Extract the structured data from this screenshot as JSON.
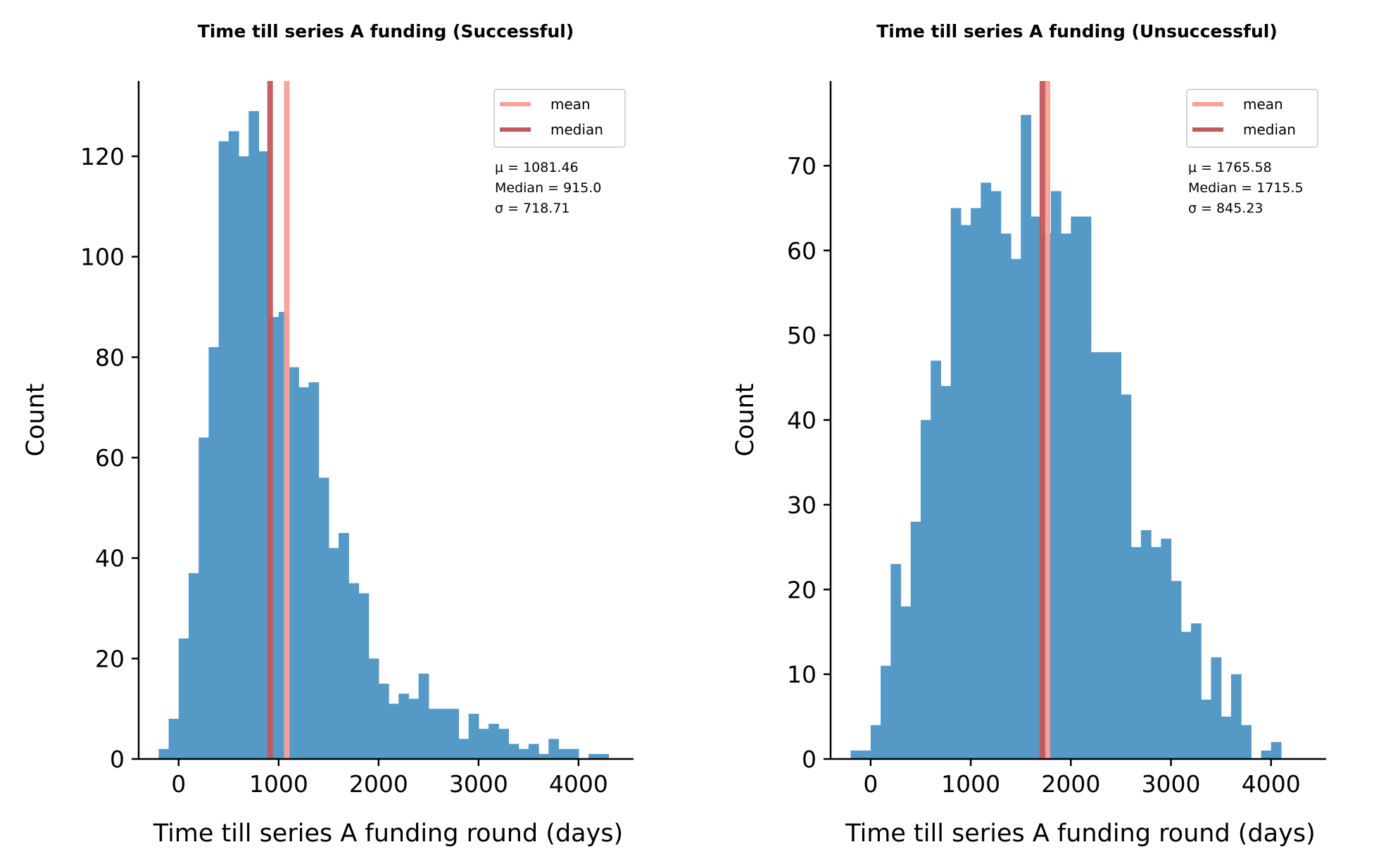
{
  "chart_data": [
    {
      "type": "histogram",
      "title": "Time till series A funding (Successful)",
      "xlabel": "Time till series A funding round (days)",
      "ylabel": "Count",
      "xlim": [
        -400,
        4550
      ],
      "ylim": [
        0,
        135
      ],
      "xticks": [
        0,
        1000,
        2000,
        3000,
        4000
      ],
      "yticks": [
        0,
        20,
        40,
        60,
        80,
        100,
        120
      ],
      "bin_start": -200,
      "bin_width": 100,
      "counts": [
        2,
        8,
        24,
        37,
        64,
        82,
        123,
        125,
        120,
        129,
        121,
        88,
        89,
        78,
        74,
        75,
        56,
        42,
        45,
        35,
        33,
        20,
        15,
        11,
        13,
        12,
        17,
        10,
        10,
        10,
        4,
        9,
        6,
        7,
        6,
        3,
        2,
        3,
        1,
        4,
        2,
        2,
        0,
        1,
        1
      ],
      "mean": 1081.46,
      "median": 915.0,
      "bar_color": "#5599c7",
      "mean_color": "#f9a196",
      "median_color": "#c0595c",
      "legend": {
        "mean_label": "mean",
        "median_label": "median",
        "position": "top-right"
      },
      "stats": [
        "μ = 1081.46",
        "Median = 915.0",
        "σ = 718.71"
      ]
    },
    {
      "type": "histogram",
      "title": "Time till series A funding (Unsuccessful)",
      "xlabel": "Time till series A funding round (days)",
      "ylabel": "Count",
      "xlim": [
        -400,
        4550
      ],
      "ylim": [
        0,
        80
      ],
      "xticks": [
        0,
        1000,
        2000,
        3000,
        4000
      ],
      "yticks": [
        0,
        10,
        20,
        30,
        40,
        50,
        60,
        70
      ],
      "bin_start": -200,
      "bin_width": 100,
      "counts": [
        1,
        1,
        4,
        11,
        23,
        18,
        28,
        40,
        47,
        44,
        65,
        63,
        65,
        68,
        67,
        62,
        59,
        76,
        64,
        62,
        67,
        62,
        64,
        64,
        48,
        48,
        48,
        43,
        25,
        27,
        25,
        26,
        21,
        15,
        16,
        7,
        12,
        5,
        10,
        4,
        0,
        1,
        2
      ],
      "mean": 1765.58,
      "median": 1715.5,
      "bar_color": "#5599c7",
      "mean_color": "#f9a196",
      "median_color": "#c0595c",
      "legend": {
        "mean_label": "mean",
        "median_label": "median",
        "position": "top-right"
      },
      "stats": [
        "μ = 1765.58",
        "Median = 1715.5",
        "σ = 845.23"
      ]
    }
  ]
}
